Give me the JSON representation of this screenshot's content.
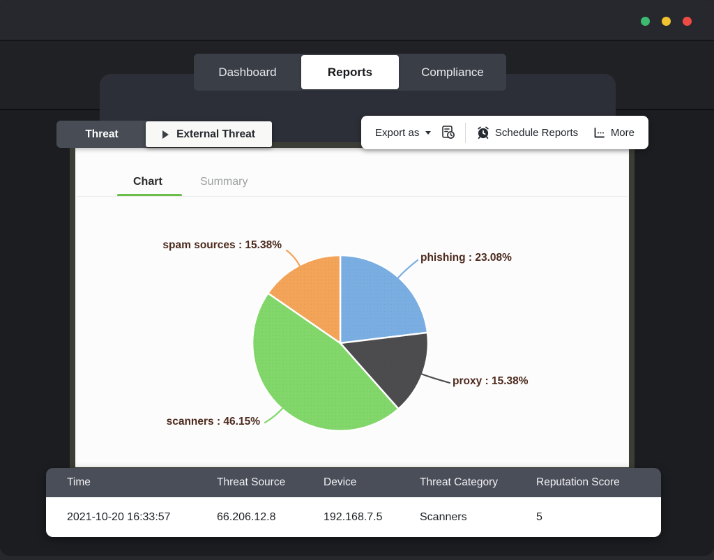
{
  "window": {
    "controls": [
      {
        "name": "green",
        "color": "#3EB971"
      },
      {
        "name": "yellow",
        "color": "#EFC230"
      },
      {
        "name": "red",
        "color": "#EE4B45"
      }
    ]
  },
  "nav": {
    "tabs": [
      {
        "label": "Dashboard",
        "active": false
      },
      {
        "label": "Reports",
        "active": true
      },
      {
        "label": "Compliance",
        "active": false
      }
    ]
  },
  "breadcrumb": {
    "category": "Threat",
    "report": "External Threat"
  },
  "toolbar": {
    "export_label": "Export as",
    "schedule_label": "Schedule Reports",
    "more_label": "More"
  },
  "view_tabs": {
    "chart": "Chart",
    "summary": "Summary",
    "active": "Chart",
    "active_underline_color": "#6CBE4B"
  },
  "chart_data": {
    "type": "pie",
    "unit": "%",
    "direction": "clockwise",
    "start_angle_deg": 0,
    "legend": "none",
    "labels_style": "outside callouts with curved leader lines",
    "slices": [
      {
        "label": "phishing",
        "value": 23.08,
        "color": "#7AAEE2",
        "display": "phishing : 23.08%"
      },
      {
        "label": "proxy",
        "value": 15.38,
        "color": "#4C4C4F",
        "display": "proxy : 15.38%"
      },
      {
        "label": "scanners",
        "value": 46.15,
        "color": "#82D76A",
        "display": "scanners : 46.15%"
      },
      {
        "label": "spam sources",
        "value": 15.38,
        "color": "#F3A458",
        "display": "spam sources : 15.38%"
      }
    ],
    "callout_text_color": "#4C2A1E"
  },
  "table": {
    "columns": [
      "Time",
      "Threat Source",
      "Device",
      "Threat Category",
      "Reputation Score"
    ],
    "rows": [
      [
        "2021-10-20 16:33:57",
        "66.206.12.8",
        "192.168.7.5",
        "Scanners",
        "5"
      ]
    ],
    "header_bg": "#4A4E59"
  }
}
